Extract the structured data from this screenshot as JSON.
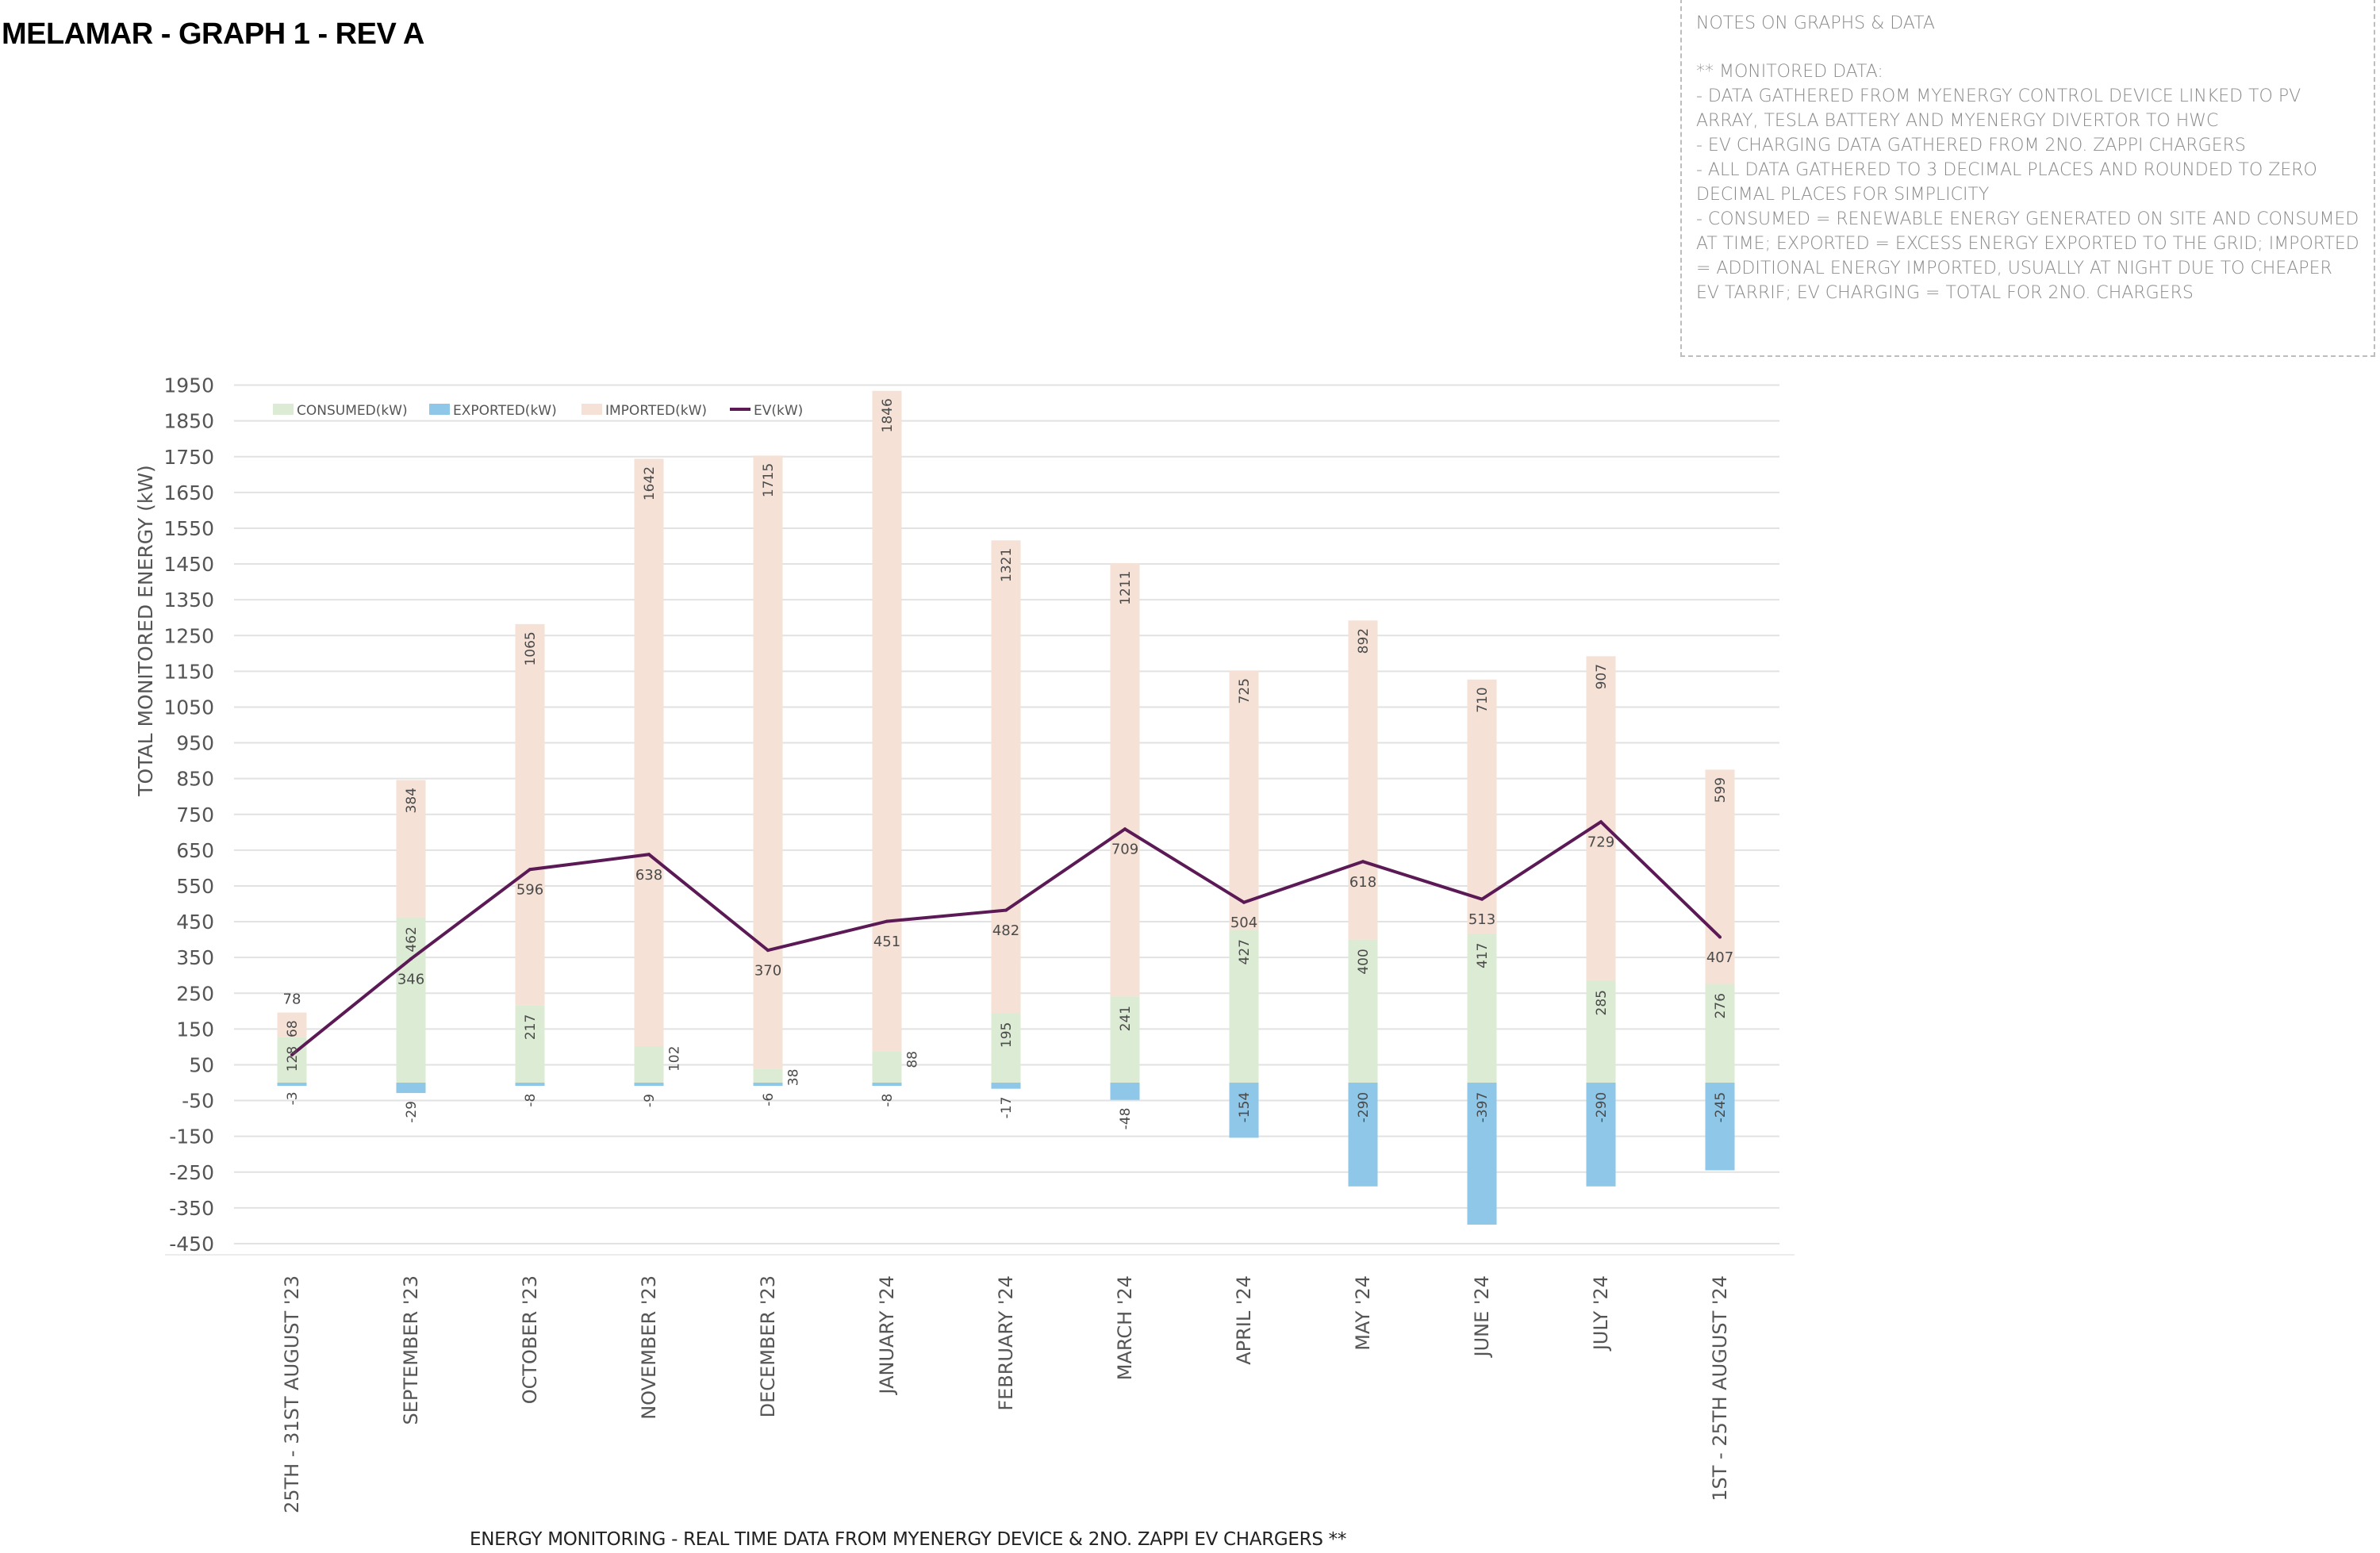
{
  "page": {
    "title": "MELAMAR - GRAPH 1 - REV A",
    "caption": "ENERGY MONITORING - REAL TIME DATA FROM MYENERGY DEVICE & 2NO. ZAPPI EV CHARGERS  **"
  },
  "notes": {
    "heading": "NOTES ON GRAPHS & DATA",
    "lines": [
      "** MONITORED DATA:",
      "- DATA GATHERED FROM MYENERGY CONTROL DEVICE LINKED TO PV ARRAY, TESLA BATTERY AND MYENERGY DIVERTOR TO HWC",
      "- EV CHARGING DATA GATHERED FROM 2NO. ZAPPI CHARGERS",
      "- ALL DATA GATHERED TO 3 DECIMAL PLACES AND ROUNDED TO ZERO DECIMAL PLACES FOR SIMPLICITY",
      "- CONSUMED = RENEWABLE ENERGY GENERATED ON SITE AND CONSUMED AT TIME; EXPORTED = EXCESS ENERGY EXPORTED TO THE GRID; IMPORTED = ADDITIONAL ENERGY IMPORTED, USUALLY AT NIGHT DUE TO CHEAPER EV TARRIF; EV CHARGING = TOTAL FOR 2NO. CHARGERS"
    ]
  },
  "colors": {
    "consumed": "#dcebd3",
    "exported": "#8ec7e8",
    "imported": "#f5e1d6",
    "ev": "#5b1a55",
    "grid": "#e2e2e2",
    "axis_text": "#555555"
  },
  "chart_data": {
    "type": "bar",
    "stacked": true,
    "title": "",
    "xlabel": "",
    "ylabel": "TOTAL MONITORED ENERGY (kW)",
    "ylim": [
      -450,
      1950
    ],
    "yticks": [
      1950,
      1850,
      1750,
      1650,
      1550,
      1450,
      1350,
      1250,
      1150,
      1050,
      950,
      850,
      750,
      650,
      550,
      450,
      350,
      250,
      150,
      50,
      -50,
      -150,
      -250,
      -350,
      -450
    ],
    "grid": true,
    "legend_position": "top-left",
    "categories": [
      "25TH - 31ST AUGUST '23",
      "SEPTEMBER '23",
      "OCTOBER '23",
      "NOVEMBER '23",
      "DECEMBER '23",
      "JANUARY '24",
      "FEBRUARY '24",
      "MARCH '24",
      "APRIL '24",
      "MAY '24",
      "JUNE '24",
      "JULY '24",
      "1ST - 25TH AUGUST '24"
    ],
    "series": [
      {
        "name": "CONSUMED (kW)",
        "kind": "bar",
        "values": [
          128,
          462,
          217,
          102,
          38,
          88,
          195,
          241,
          427,
          400,
          417,
          285,
          276
        ]
      },
      {
        "name": "EXPORTED (kW)",
        "kind": "bar",
        "values": [
          -3,
          -29,
          -8,
          -9,
          -6,
          -8,
          -17,
          -48,
          -154,
          -290,
          -397,
          -290,
          -245
        ]
      },
      {
        "name": "IMPORTED (kW)",
        "kind": "bar",
        "values": [
          68,
          384,
          1065,
          1642,
          1715,
          1846,
          1321,
          1211,
          725,
          892,
          710,
          907,
          599
        ]
      },
      {
        "name": "EV (kW)",
        "kind": "line",
        "values": [
          78,
          346,
          596,
          638,
          370,
          451,
          482,
          709,
          504,
          618,
          513,
          729,
          407
        ]
      }
    ]
  }
}
